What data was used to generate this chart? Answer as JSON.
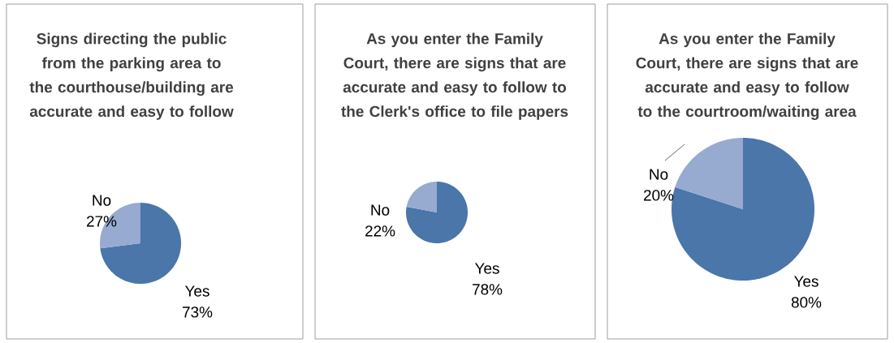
{
  "chart_data": [
    {
      "type": "pie",
      "title": "Signs directing the public from the parking area to the courthouse/building are accurate and easy to follow",
      "categories": [
        "Yes",
        "No"
      ],
      "values": [
        73,
        27
      ],
      "value_labels": [
        "73%",
        "27%"
      ],
      "colors": [
        "#4a76a9",
        "#97aad0"
      ]
    },
    {
      "type": "pie",
      "title": "As you enter the Family Court, there are signs that are accurate and easy to follow to the Clerk's office to file papers",
      "categories": [
        "Yes",
        "No"
      ],
      "values": [
        78,
        22
      ],
      "value_labels": [
        "78%",
        "22%"
      ],
      "colors": [
        "#4a76a9",
        "#97aad0"
      ]
    },
    {
      "type": "pie",
      "title": "As you enter the Family Court, there are signs that are accurate and easy to follow to the courtroom/waiting area",
      "categories": [
        "Yes",
        "No"
      ],
      "values": [
        80,
        20
      ],
      "value_labels": [
        "80%",
        "20%"
      ],
      "colors": [
        "#4a76a9",
        "#97aad0"
      ]
    }
  ]
}
